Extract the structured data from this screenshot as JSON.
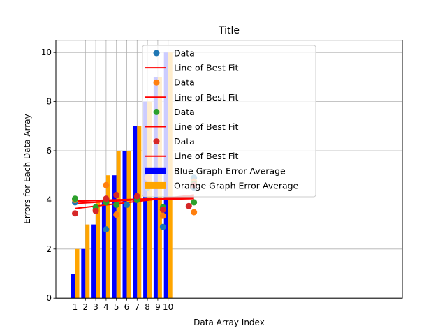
{
  "chart_data": {
    "type": "bar",
    "title": "Title",
    "xlabel": "Data Array Index",
    "ylabel": "Errors for Each Data Array",
    "ylim": [
      0,
      10.5
    ],
    "yticks": [
      0,
      2,
      4,
      6,
      8,
      10
    ],
    "xticks": [
      "1",
      "2",
      "3",
      "4",
      "5",
      "6",
      "7",
      "8",
      "9",
      "10"
    ],
    "grid": true,
    "legend_placement": "upper-middle",
    "bar_series": [
      {
        "name": "Blue Graph Error Average",
        "color": "#0000ff",
        "values": [
          1,
          2,
          3,
          4,
          5,
          6,
          7,
          8,
          9,
          10
        ]
      },
      {
        "name": "Orange Graph Error Average",
        "color": "#ffa500",
        "values": [
          2,
          3,
          4,
          5,
          6,
          6,
          7,
          8,
          9,
          10
        ]
      }
    ],
    "scatter_series": [
      {
        "name": "Data",
        "color": "#1f77b4",
        "line_name": "Line of Best Fit",
        "x": [
          1,
          4,
          6,
          8,
          9.5,
          9.5,
          12.5,
          12.5
        ],
        "y": [
          3.9,
          2.8,
          3.8,
          4.5,
          2.9,
          3.6,
          4.9,
          4.5
        ],
        "fit": [
          [
            1,
            3.85
          ],
          [
            12.5,
            4.15
          ]
        ]
      },
      {
        "name": "Data",
        "color": "#ff7f0e",
        "line_name": "Line of Best Fit",
        "x": [
          1,
          3,
          4,
          5,
          8,
          9.5,
          12.5,
          12.5
        ],
        "y": [
          4.0,
          3.6,
          4.6,
          3.4,
          4.9,
          3.35,
          3.5,
          4.75
        ],
        "fit": [
          [
            1,
            3.95
          ],
          [
            12.5,
            4.05
          ]
        ]
      },
      {
        "name": "Data",
        "color": "#2ca02c",
        "line_name": "Line of Best Fit",
        "x": [
          1,
          3,
          4,
          5,
          7,
          9.5,
          12.5,
          12.5
        ],
        "y": [
          4.05,
          3.7,
          3.9,
          3.8,
          4.0,
          3.7,
          3.9,
          4.65
        ],
        "fit": [
          [
            1,
            3.95
          ],
          [
            12.5,
            4.1
          ]
        ]
      },
      {
        "name": "Data",
        "color": "#d62728",
        "line_name": "Line of Best Fit",
        "x": [
          1,
          3,
          4,
          5,
          7,
          8,
          9.5,
          12,
          12.5
        ],
        "y": [
          3.45,
          3.55,
          4.05,
          4.2,
          4.15,
          4.6,
          3.6,
          3.75,
          4.6
        ],
        "fit": [
          [
            1,
            3.65
          ],
          [
            12.5,
            4.2
          ]
        ]
      }
    ],
    "legend_order": [
      "s0",
      "l0",
      "s1",
      "l1",
      "s2",
      "l2",
      "s3",
      "l3",
      "b0",
      "b1"
    ]
  }
}
